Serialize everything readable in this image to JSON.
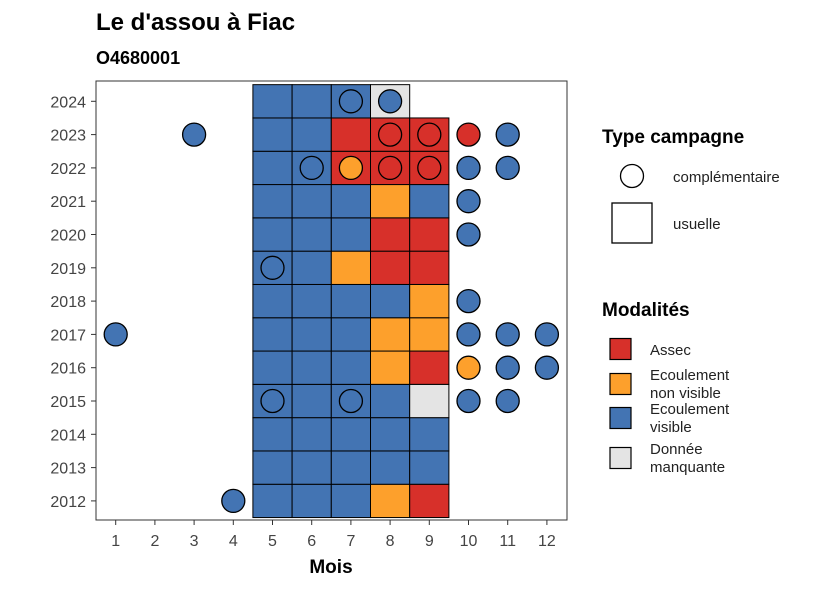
{
  "chart_data": {
    "type": "heatmap",
    "title": "Le d'assou à Fiac",
    "subtitle": "O4680001",
    "xlabel": "Mois",
    "ylabel": "",
    "x_ticks": [
      "1",
      "2",
      "3",
      "4",
      "5",
      "6",
      "7",
      "8",
      "9",
      "10",
      "11",
      "12"
    ],
    "y_ticks": [
      "2012",
      "2013",
      "2014",
      "2015",
      "2016",
      "2017",
      "2018",
      "2019",
      "2020",
      "2021",
      "2022",
      "2023",
      "2024"
    ],
    "xlim": [
      0.5,
      12.5
    ],
    "ylim": [
      2011.5,
      2024.5
    ],
    "grid": false,
    "colors": {
      "Assec": "#D7302A",
      "Ecoulement non visible": "#FDA02C",
      "Ecoulement visible": "#4374B3",
      "Donnée manquante": "#E4E4E4"
    },
    "usuelle": [
      {
        "year": 2012,
        "values": {
          "5": "Ecoulement visible",
          "6": "Ecoulement visible",
          "7": "Ecoulement visible",
          "8": "Ecoulement non visible",
          "9": "Assec"
        }
      },
      {
        "year": 2013,
        "values": {
          "5": "Ecoulement visible",
          "6": "Ecoulement visible",
          "7": "Ecoulement visible",
          "8": "Ecoulement visible",
          "9": "Ecoulement visible"
        }
      },
      {
        "year": 2014,
        "values": {
          "5": "Ecoulement visible",
          "6": "Ecoulement visible",
          "7": "Ecoulement visible",
          "8": "Ecoulement visible",
          "9": "Ecoulement visible"
        }
      },
      {
        "year": 2015,
        "values": {
          "5": "Ecoulement visible",
          "6": "Ecoulement visible",
          "7": "Ecoulement visible",
          "8": "Ecoulement visible",
          "9": "Donnée manquante"
        }
      },
      {
        "year": 2016,
        "values": {
          "5": "Ecoulement visible",
          "6": "Ecoulement visible",
          "7": "Ecoulement visible",
          "8": "Ecoulement non visible",
          "9": "Assec"
        }
      },
      {
        "year": 2017,
        "values": {
          "5": "Ecoulement visible",
          "6": "Ecoulement visible",
          "7": "Ecoulement visible",
          "8": "Ecoulement non visible",
          "9": "Ecoulement non visible"
        }
      },
      {
        "year": 2018,
        "values": {
          "5": "Ecoulement visible",
          "6": "Ecoulement visible",
          "7": "Ecoulement visible",
          "8": "Ecoulement visible",
          "9": "Ecoulement non visible"
        }
      },
      {
        "year": 2019,
        "values": {
          "5": "Ecoulement visible",
          "6": "Ecoulement visible",
          "7": "Ecoulement non visible",
          "8": "Assec",
          "9": "Assec"
        }
      },
      {
        "year": 2020,
        "values": {
          "5": "Ecoulement visible",
          "6": "Ecoulement visible",
          "7": "Ecoulement visible",
          "8": "Assec",
          "9": "Assec"
        }
      },
      {
        "year": 2021,
        "values": {
          "5": "Ecoulement visible",
          "6": "Ecoulement visible",
          "7": "Ecoulement visible",
          "8": "Ecoulement non visible",
          "9": "Ecoulement visible"
        }
      },
      {
        "year": 2022,
        "values": {
          "5": "Ecoulement visible",
          "6": "Ecoulement visible",
          "7": "Assec",
          "8": "Assec",
          "9": "Assec"
        }
      },
      {
        "year": 2023,
        "values": {
          "5": "Ecoulement visible",
          "6": "Ecoulement visible",
          "7": "Assec",
          "8": "Assec",
          "9": "Assec"
        }
      },
      {
        "year": 2024,
        "values": {
          "5": "Ecoulement visible",
          "6": "Ecoulement visible",
          "7": "Ecoulement visible",
          "8": "Donnée manquante"
        }
      }
    ],
    "complementaire": [
      {
        "year": 2024,
        "month": 7,
        "value": "Ecoulement visible"
      },
      {
        "year": 2024,
        "month": 8,
        "value": "Ecoulement visible"
      },
      {
        "year": 2023,
        "month": 3,
        "value": "Ecoulement visible"
      },
      {
        "year": 2023,
        "month": 8,
        "value": "Assec"
      },
      {
        "year": 2023,
        "month": 9,
        "value": "Assec"
      },
      {
        "year": 2023,
        "month": 10,
        "value": "Assec"
      },
      {
        "year": 2023,
        "month": 11,
        "value": "Ecoulement visible"
      },
      {
        "year": 2022,
        "month": 6,
        "value": "Ecoulement visible"
      },
      {
        "year": 2022,
        "month": 7,
        "value": "Ecoulement non visible"
      },
      {
        "year": 2022,
        "month": 8,
        "value": "Assec"
      },
      {
        "year": 2022,
        "month": 9,
        "value": "Assec"
      },
      {
        "year": 2022,
        "month": 10,
        "value": "Ecoulement visible"
      },
      {
        "year": 2022,
        "month": 11,
        "value": "Ecoulement visible"
      },
      {
        "year": 2021,
        "month": 10,
        "value": "Ecoulement visible"
      },
      {
        "year": 2020,
        "month": 10,
        "value": "Ecoulement visible"
      },
      {
        "year": 2019,
        "month": 5,
        "value": "Ecoulement visible"
      },
      {
        "year": 2018,
        "month": 10,
        "value": "Ecoulement visible"
      },
      {
        "year": 2017,
        "month": 1,
        "value": "Ecoulement visible"
      },
      {
        "year": 2017,
        "month": 10,
        "value": "Ecoulement visible"
      },
      {
        "year": 2017,
        "month": 11,
        "value": "Ecoulement visible"
      },
      {
        "year": 2017,
        "month": 12,
        "value": "Ecoulement visible"
      },
      {
        "year": 2016,
        "month": 10,
        "value": "Ecoulement non visible"
      },
      {
        "year": 2016,
        "month": 11,
        "value": "Ecoulement visible"
      },
      {
        "year": 2016,
        "month": 12,
        "value": "Ecoulement visible"
      },
      {
        "year": 2015,
        "month": 5,
        "value": "Ecoulement visible"
      },
      {
        "year": 2015,
        "month": 7,
        "value": "Ecoulement visible"
      },
      {
        "year": 2015,
        "month": 10,
        "value": "Ecoulement visible"
      },
      {
        "year": 2015,
        "month": 11,
        "value": "Ecoulement visible"
      },
      {
        "year": 2012,
        "month": 4,
        "value": "Ecoulement visible"
      }
    ],
    "legend": {
      "placement": "right",
      "type_title": "Type campagne",
      "type_items": [
        {
          "key": "complementaire",
          "label": "complémentaire",
          "shape": "circle"
        },
        {
          "key": "usuelle",
          "label": "usuelle",
          "shape": "square"
        }
      ],
      "modalites_title": "Modalités",
      "modalites_items": [
        {
          "key": "Assec",
          "lines": [
            "Assec"
          ]
        },
        {
          "key": "Ecoulement non visible",
          "lines": [
            "Ecoulement",
            "non visible"
          ]
        },
        {
          "key": "Ecoulement visible",
          "lines": [
            "Ecoulement",
            "visible"
          ]
        },
        {
          "key": "Donnée manquante",
          "lines": [
            "Donnée",
            "manquante"
          ]
        }
      ]
    }
  }
}
